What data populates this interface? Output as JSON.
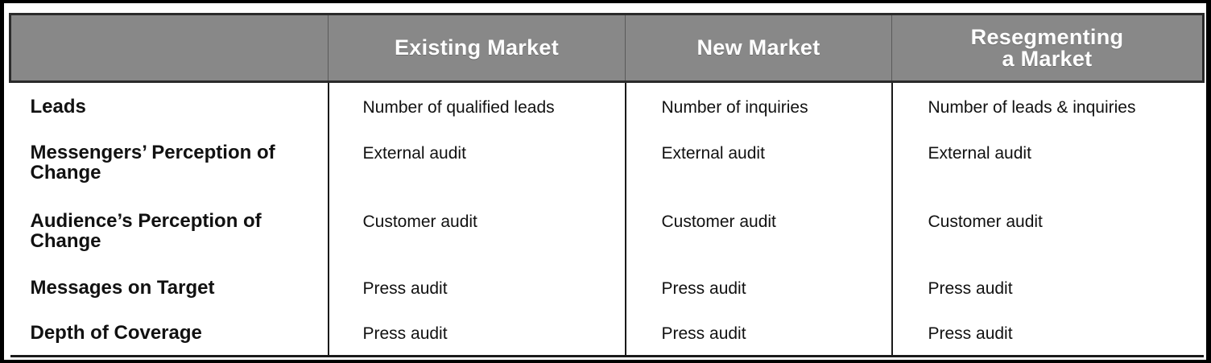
{
  "table": {
    "headers": [
      "",
      "Existing Market",
      "New Market",
      "Resegmenting\na Market"
    ],
    "rows": [
      {
        "label": "Leads",
        "values": [
          "Number of qualified leads",
          "Number of inquiries",
          "Number of leads & inquiries"
        ]
      },
      {
        "label": "Messengers’ Perception of Change",
        "values": [
          "External audit",
          "External audit",
          "External audit"
        ]
      },
      {
        "label": "Audience’s Perception of Change",
        "values": [
          "Customer audit",
          "Customer audit",
          "Customer audit"
        ]
      },
      {
        "label": "Messages on Target",
        "values": [
          "Press audit",
          "Press audit",
          "Press audit"
        ]
      },
      {
        "label": "Depth of Coverage",
        "values": [
          "Press audit",
          "Press audit",
          "Press audit"
        ]
      }
    ]
  },
  "colors": {
    "header_bg": "#888888",
    "header_text": "#ffffff",
    "frame": "#000000",
    "body_bg": "#ffffff",
    "text": "#111111"
  }
}
